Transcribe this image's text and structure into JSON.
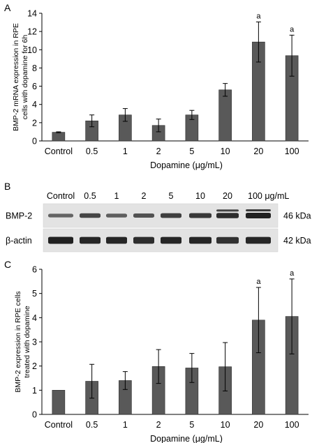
{
  "panels": {
    "a": {
      "letter": "A"
    },
    "b": {
      "letter": "B"
    },
    "c": {
      "letter": "C"
    }
  },
  "chart_data": [
    {
      "type": "bar",
      "panel": "A",
      "categories": [
        "Control",
        "0.5",
        "1",
        "2",
        "5",
        "10",
        "20",
        "100"
      ],
      "values": [
        0.95,
        2.2,
        2.85,
        1.7,
        2.85,
        5.6,
        10.85,
        9.35
      ],
      "errors": [
        0.05,
        0.65,
        0.7,
        0.7,
        0.5,
        0.7,
        2.2,
        2.25
      ],
      "significance": [
        "",
        "",
        "",
        "",
        "",
        "",
        "a",
        "a"
      ],
      "xlabel": "Dopamine (μg/mL)",
      "ylabel_lines": [
        "BMP-2 mRNA expression in RPE",
        "cells with dopamine for 6h"
      ],
      "ylim": [
        0,
        14
      ],
      "yticks": [
        0,
        2,
        4,
        6,
        8,
        10,
        12,
        14
      ],
      "bar_color": "#595959"
    },
    {
      "type": "bar",
      "panel": "C",
      "categories": [
        "Control",
        "0.5",
        "1",
        "2",
        "5",
        "10",
        "20",
        "100"
      ],
      "values": [
        1.0,
        1.37,
        1.4,
        1.98,
        1.92,
        1.97,
        3.9,
        4.05
      ],
      "errors": [
        0.0,
        0.7,
        0.37,
        0.7,
        0.6,
        1.0,
        1.35,
        1.55
      ],
      "significance": [
        "",
        "",
        "",
        "",
        "",
        "",
        "a",
        "a"
      ],
      "xlabel": "Dopamine (μg/mL)",
      "ylabel_lines": [
        "BMP-2 expression in RPE cells",
        "treated with dopamine"
      ],
      "ylim": [
        0,
        6
      ],
      "yticks": [
        0,
        1,
        2,
        3,
        4,
        5,
        6
      ],
      "bar_color": "#595959"
    }
  ],
  "blot": {
    "lane_labels": [
      "Control",
      "0.5",
      "1",
      "2",
      "5",
      "10",
      "20",
      "100 μg/mL"
    ],
    "rows": [
      {
        "name": "BMP-2",
        "size": "46 kDa",
        "intensity": [
          0.45,
          0.7,
          0.5,
          0.6,
          0.75,
          0.8,
          0.9,
          1.0
        ]
      },
      {
        "name": "β-actin",
        "size": "42 kDa",
        "intensity": [
          1.0,
          0.95,
          0.95,
          0.9,
          0.95,
          0.95,
          0.85,
          0.95
        ]
      }
    ]
  }
}
